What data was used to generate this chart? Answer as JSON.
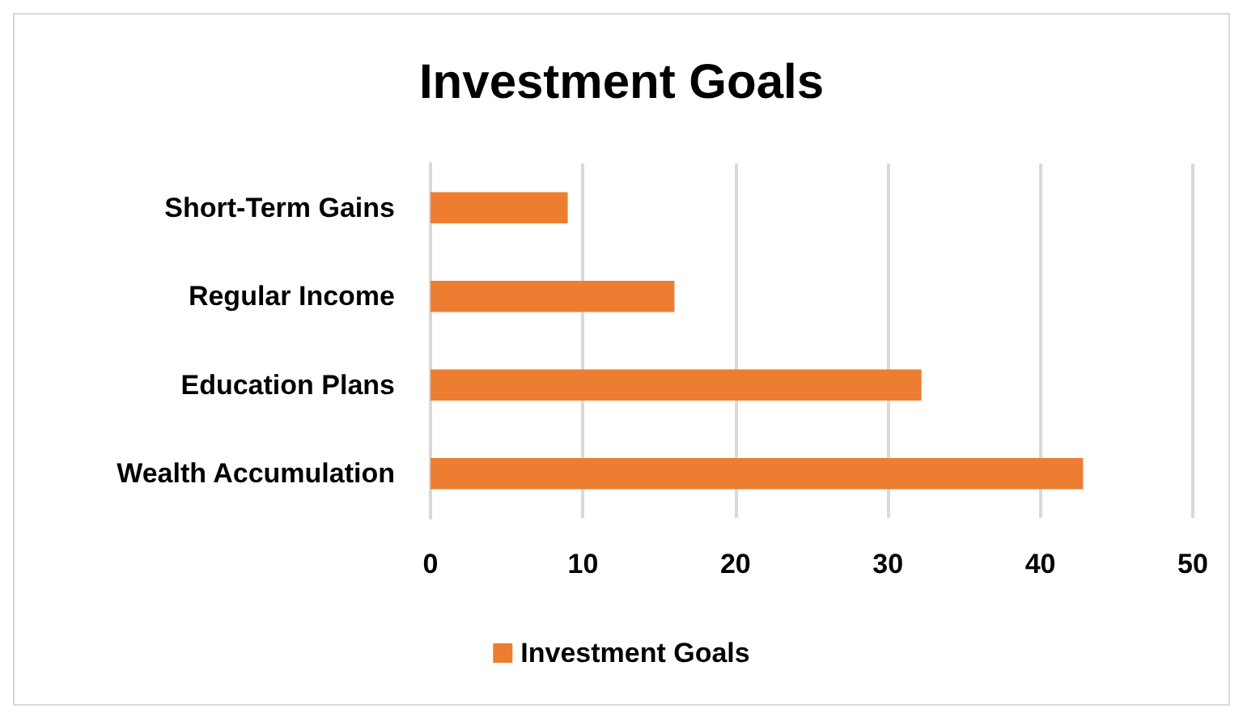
{
  "chart_data": {
    "type": "bar",
    "orientation": "horizontal",
    "title": "Investment Goals",
    "categories": [
      "Short-Term Gains",
      "Regular Income",
      "Education Plans",
      "Wealth Accumulation"
    ],
    "series": [
      {
        "name": "Investment Goals",
        "color": "#ed7d31",
        "values": [
          9,
          16,
          32.2,
          42.8
        ]
      }
    ],
    "xlim": [
      0,
      50
    ],
    "xticks": [
      0,
      10,
      20,
      30,
      40,
      50
    ],
    "grid": "x",
    "legend": "bottom"
  }
}
